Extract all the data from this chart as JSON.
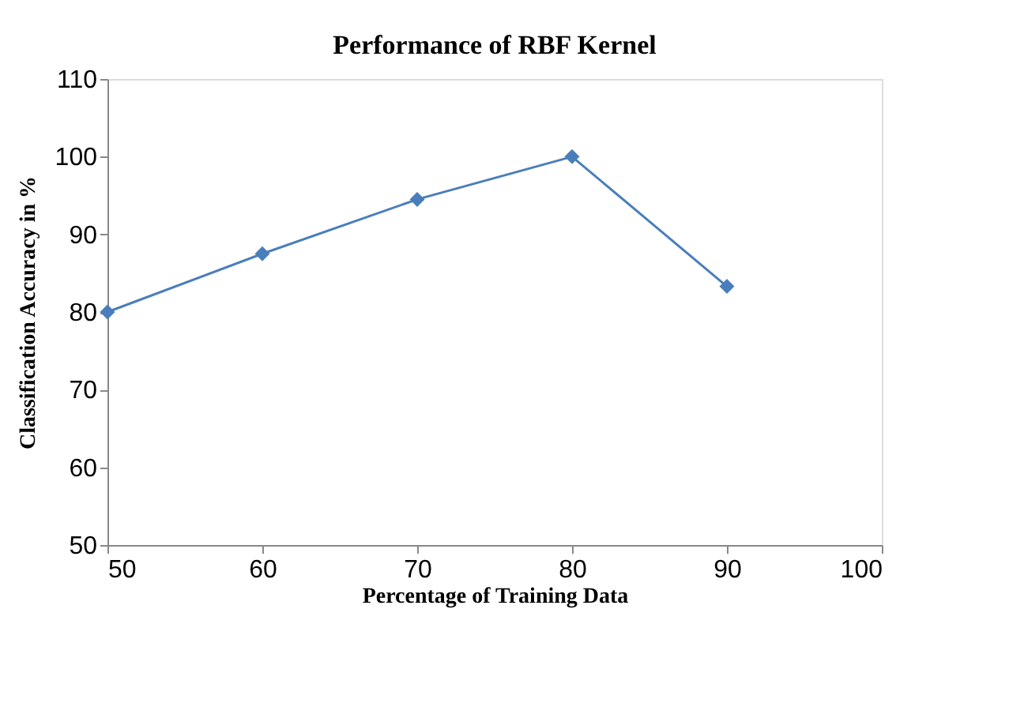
{
  "chart_data": {
    "type": "line",
    "title": "Performance of RBF  Kernel",
    "xlabel": "Percentage of Training Data",
    "ylabel": "Classification Accuracy in %",
    "x": [
      50,
      60,
      70,
      80,
      90
    ],
    "series": [
      {
        "color": "#4a7ebb",
        "values": [
          80,
          87.5,
          94.5,
          100,
          83.3
        ]
      }
    ],
    "xlim": [
      50,
      100
    ],
    "xticks": [
      50,
      60,
      70,
      80,
      90,
      100
    ],
    "ylim": [
      50,
      110
    ],
    "yticks": [
      50,
      60,
      70,
      80,
      90,
      100,
      110
    ],
    "grid": false,
    "marker": "diamond",
    "line_style": "solid"
  }
}
